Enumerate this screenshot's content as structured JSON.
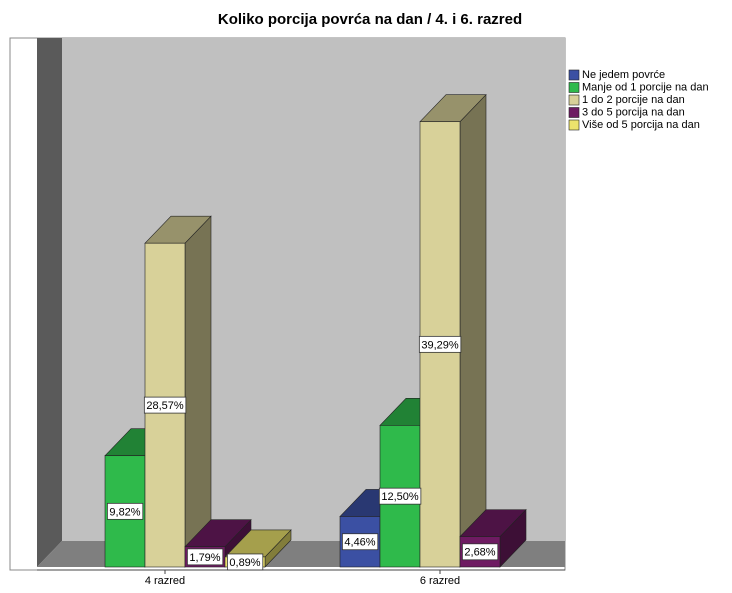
{
  "chart_data": {
    "type": "bar3d",
    "title": "Koliko porcija povrća na dan / 4. i 6. razred",
    "categories": [
      "4 razred",
      "6 razred"
    ],
    "series": [
      {
        "name": "Ne jedem povrće",
        "color": "#3b50a3",
        "values": [
          null,
          4.46
        ],
        "value_labels": [
          null,
          "4,46%"
        ]
      },
      {
        "name": "Manje od 1 porcije na dan",
        "color": "#2fba4b",
        "values": [
          9.82,
          12.5
        ],
        "value_labels": [
          "9,82%",
          "12,50%"
        ]
      },
      {
        "name": "1 do 2 porcije na dan",
        "color": "#d8d199",
        "values": [
          28.57,
          39.29
        ],
        "value_labels": [
          "28,57%",
          "39,29%"
        ]
      },
      {
        "name": "3 do 5 porcija na dan",
        "color": "#6e1b62",
        "values": [
          1.79,
          2.68
        ],
        "value_labels": [
          "1,79%",
          "2,68%"
        ]
      },
      {
        "name": "Više od 5 porcija na dan",
        "color": "#ece36c",
        "values": [
          0.89,
          null
        ],
        "value_labels": [
          "0,89%",
          null
        ]
      }
    ],
    "ylim": [
      0,
      45
    ],
    "legend": "right"
  }
}
